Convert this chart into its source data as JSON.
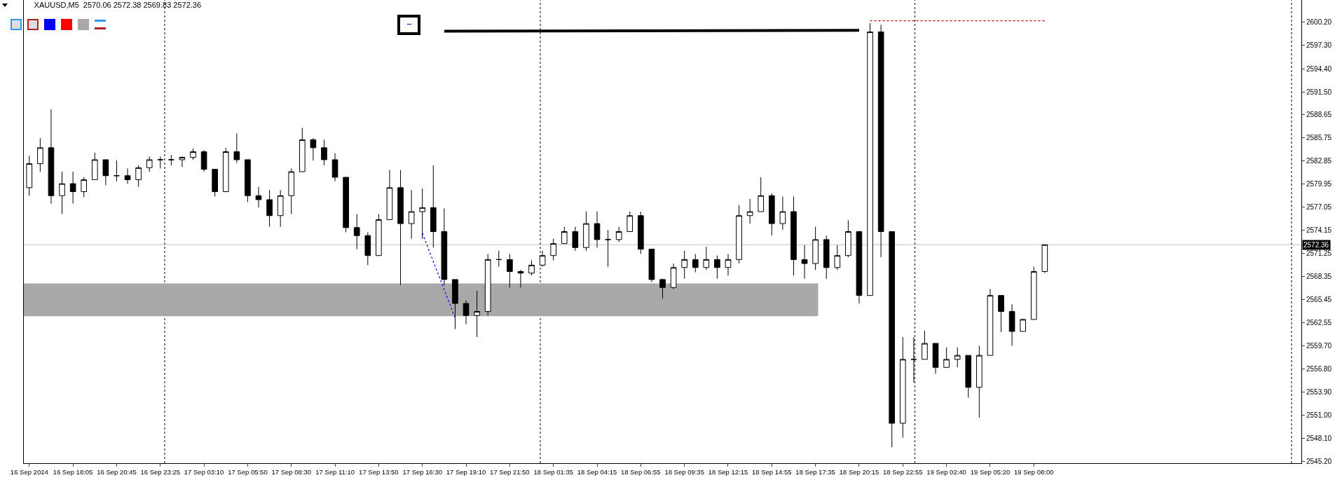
{
  "chart_data": {
    "type": "candlestick",
    "title": "XAUUSD,M5  2570.06 2572.38 2569.83 2572.36",
    "color": "#000000",
    "categories": [
      "16 Sep 2024",
      null,
      null,
      null,
      "16 Sep 18:05",
      null,
      null,
      null,
      "16 Sep 20:45",
      null,
      null,
      null,
      "16 Sep 23:25",
      null,
      null,
      null,
      "17 Sep 03:10",
      null,
      null,
      null,
      "17 Sep 05:50",
      null,
      null,
      null,
      "17 Sep 08:30",
      null,
      null,
      null,
      "17 Sep 11:10",
      null,
      null,
      null,
      "17 Sep 13:50",
      null,
      null,
      null,
      "17 Sep 16:30",
      null,
      null,
      null,
      "17 Sep 19:10",
      null,
      null,
      null,
      "17 Sep 21:50",
      null,
      null,
      null,
      "18 Sep 01:35",
      null,
      null,
      null,
      "18 Sep 04:15",
      null,
      null,
      null,
      "18 Sep 06:55",
      null,
      null,
      null,
      "18 Sep 09:35",
      null,
      null,
      null,
      "18 Sep 12:15",
      null,
      null,
      null,
      "18 Sep 14:55",
      null,
      null,
      null,
      "18 Sep 17:35",
      null,
      null,
      null,
      "18 Sep 20:15",
      null,
      null,
      null,
      "18 Sep 22:55",
      null,
      null,
      null,
      "19 Sep 02:40",
      null,
      null,
      null,
      "19 Sep 05:20",
      null,
      null,
      null,
      "19 Sep 08:00",
      null,
      null,
      null,
      null,
      null,
      null,
      null,
      null,
      null,
      null,
      null,
      null,
      null,
      null,
      null,
      null,
      null,
      null,
      null,
      null,
      null,
      null,
      null,
      null
    ],
    "ohlc": [
      [
        2579.5,
        2583.5,
        2578.5,
        2582.5
      ],
      [
        2582.5,
        2585.7,
        2581.5,
        2584.5
      ],
      [
        2584.5,
        2589.3,
        2577.5,
        2578.5
      ],
      [
        2578.5,
        2581.5,
        2576.2,
        2580
      ],
      [
        2580,
        2581.5,
        2577.5,
        2579
      ],
      [
        2579,
        2580.8,
        2578.3,
        2580.5
      ],
      [
        2580.5,
        2583.9,
        2580.5,
        2583
      ],
      [
        2583,
        2583,
        2579.8,
        2581
      ],
      [
        2581,
        2582.9,
        2580.3,
        2581
      ],
      [
        2581,
        2581.9,
        2580,
        2580.5
      ],
      [
        2580.5,
        2582.3,
        2579.6,
        2582
      ],
      [
        2582,
        2583.4,
        2581.5,
        2583
      ],
      [
        2583,
        2583.4,
        2581.9,
        2583
      ],
      [
        2583,
        2583.6,
        2582.3,
        2583
      ],
      [
        2583,
        2583.4,
        2582.1,
        2583.3
      ],
      [
        2583.3,
        2584.4,
        2583,
        2584
      ],
      [
        2584,
        2584.2,
        2581.5,
        2581.8
      ],
      [
        2581.8,
        2581.8,
        2578.4,
        2579
      ],
      [
        2579,
        2584.5,
        2579,
        2584
      ],
      [
        2584,
        2586.3,
        2582.6,
        2583
      ],
      [
        2583,
        2583,
        2577.7,
        2578.5
      ],
      [
        2578.5,
        2579.6,
        2577,
        2578
      ],
      [
        2578,
        2579.2,
        2574.6,
        2576
      ],
      [
        2576,
        2579.2,
        2574.6,
        2578.5
      ],
      [
        2578.5,
        2581.9,
        2576.2,
        2581.5
      ],
      [
        2581.5,
        2587,
        2581.5,
        2585.5
      ],
      [
        2585.5,
        2585.7,
        2582.9,
        2584.5
      ],
      [
        2584.5,
        2585.5,
        2582.3,
        2583
      ],
      [
        2583,
        2583.8,
        2580.3,
        2580.8
      ],
      [
        2580.8,
        2580.8,
        2573.9,
        2574.5
      ],
      [
        2574.5,
        2576.2,
        2571.8,
        2573.5
      ],
      [
        2573.5,
        2573.9,
        2569.8,
        2571
      ],
      [
        2571,
        2576.2,
        2571,
        2575.5
      ],
      [
        2575.5,
        2581.7,
        2575.5,
        2579.5
      ],
      [
        2579.5,
        2581.7,
        2567.3,
        2575
      ],
      [
        2575,
        2579.2,
        2573.1,
        2576.5
      ],
      [
        2576.5,
        2579.4,
        2573.1,
        2577
      ],
      [
        2577,
        2582.3,
        2572,
        2574
      ],
      [
        2574,
        2576.9,
        2567.3,
        2568
      ],
      [
        2568,
        2568,
        2561.8,
        2565
      ],
      [
        2565,
        2565.4,
        2562.4,
        2563.5
      ],
      [
        2563.5,
        2566.6,
        2560.8,
        2564
      ],
      [
        2564,
        2571.2,
        2563.5,
        2570.5
      ],
      [
        2570.5,
        2571.6,
        2569.6,
        2570.5
      ],
      [
        2570.5,
        2571.2,
        2567,
        2569
      ],
      [
        2569,
        2569.2,
        2567,
        2568.8
      ],
      [
        2568.8,
        2570.4,
        2568.5,
        2569.8
      ],
      [
        2569.8,
        2571.6,
        2569.6,
        2571
      ],
      [
        2571,
        2573.1,
        2570.4,
        2572.5
      ],
      [
        2572.5,
        2574.6,
        2572.5,
        2574
      ],
      [
        2574,
        2574.6,
        2571.6,
        2572
      ],
      [
        2572,
        2576.5,
        2571.6,
        2575
      ],
      [
        2575,
        2576.5,
        2572,
        2573
      ],
      [
        2573,
        2574.2,
        2569.6,
        2573
      ],
      [
        2573,
        2574.6,
        2572.7,
        2574
      ],
      [
        2574,
        2576.5,
        2574,
        2576
      ],
      [
        2576,
        2576.5,
        2571.2,
        2571.8
      ],
      [
        2571.8,
        2571.8,
        2567.7,
        2568
      ],
      [
        2568,
        2568.1,
        2565.6,
        2567
      ],
      [
        2567,
        2570,
        2566.8,
        2569.5
      ],
      [
        2569.5,
        2571.6,
        2568.1,
        2570.5
      ],
      [
        2570.5,
        2571.2,
        2568.9,
        2569.5
      ],
      [
        2569.5,
        2572.1,
        2569.2,
        2570.5
      ],
      [
        2570.5,
        2571,
        2568.1,
        2569.5
      ],
      [
        2569.5,
        2571.2,
        2568.5,
        2570.5
      ],
      [
        2570.5,
        2577.3,
        2570,
        2576
      ],
      [
        2576,
        2578.1,
        2575,
        2576.5
      ],
      [
        2576.5,
        2580.8,
        2576.5,
        2578.5
      ],
      [
        2578.5,
        2578.8,
        2573.5,
        2575
      ],
      [
        2575,
        2578.4,
        2574.2,
        2576.5
      ],
      [
        2576.5,
        2578.4,
        2568.5,
        2570.5
      ],
      [
        2570.5,
        2572.3,
        2568.1,
        2570
      ],
      [
        2570,
        2574.6,
        2569.2,
        2573
      ],
      [
        2573,
        2573.5,
        2568.1,
        2569.5
      ],
      [
        2569.5,
        2572.3,
        2569.2,
        2571
      ],
      [
        2571,
        2575.4,
        2570.8,
        2574
      ],
      [
        2574,
        2574,
        2565,
        2566
      ],
      [
        2566,
        2600.1,
        2566,
        2599
      ],
      [
        2599,
        2599.9,
        2570.8,
        2574
      ],
      [
        2574,
        2574,
        2547,
        2550
      ],
      [
        2550,
        2560.8,
        2548.2,
        2558
      ],
      [
        2558,
        2560.8,
        2555.1,
        2558
      ],
      [
        2558,
        2561.6,
        2558,
        2560
      ],
      [
        2560,
        2560,
        2556.2,
        2557
      ],
      [
        2557,
        2559.5,
        2557,
        2558
      ],
      [
        2558,
        2559.5,
        2557,
        2558.5
      ],
      [
        2558.5,
        2558.5,
        2553.2,
        2554.5
      ],
      [
        2554.5,
        2559.7,
        2550.7,
        2558.5
      ],
      [
        2558.5,
        2566.8,
        2558.5,
        2566
      ],
      [
        2566,
        2566,
        2561.4,
        2564
      ],
      [
        2564,
        2564.9,
        2559.7,
        2561.5
      ],
      [
        2561.5,
        2563.1,
        2561.5,
        2563
      ],
      [
        2563,
        2569.6,
        2563,
        2569
      ],
      [
        2569,
        2572.38,
        2568.8,
        2572.36
      ],
      null,
      null,
      null,
      null,
      null,
      null,
      null,
      null,
      null,
      null,
      null,
      null,
      null,
      null,
      null,
      null,
      null,
      null,
      null,
      null,
      null,
      null,
      null
    ],
    "bands": [
      {
        "axis": "y",
        "from": 2563.4,
        "to": 2567.5,
        "color": "#a9a9a9"
      }
    ],
    "series": [
      {
        "type": "line",
        "color": "#000000",
        "line_style": "solid",
        "values": [
          null,
          null,
          null,
          null,
          null,
          null,
          null,
          null,
          null,
          null,
          null,
          null,
          null,
          null,
          null,
          null,
          null,
          null,
          null,
          null,
          null,
          null,
          null,
          null,
          null,
          null,
          null,
          null,
          null,
          null,
          null,
          null,
          null,
          null,
          null,
          null,
          null,
          null,
          2599.1,
          null,
          null,
          null,
          null,
          null,
          null,
          null,
          null,
          null,
          null,
          null,
          null,
          null,
          null,
          null,
          null,
          null,
          null,
          null,
          null,
          null,
          null,
          null,
          null,
          null,
          null,
          null,
          null,
          null,
          null,
          null,
          null,
          null,
          null,
          null,
          null,
          null,
          2599.2,
          null,
          null,
          null,
          null,
          null,
          null,
          null,
          null,
          null,
          null,
          null,
          null,
          null,
          null,
          null,
          null,
          null,
          null,
          null,
          null,
          null,
          null,
          null,
          null,
          null,
          null,
          null,
          null,
          null,
          null,
          null,
          null,
          null,
          null,
          null,
          null,
          null,
          null,
          null,
          null
        ]
      },
      {
        "type": "line",
        "color": "#0000ff",
        "line_style": "dotted",
        "values": [
          null,
          null,
          null,
          null,
          null,
          null,
          null,
          null,
          null,
          null,
          null,
          null,
          null,
          null,
          null,
          null,
          null,
          null,
          null,
          null,
          null,
          null,
          null,
          null,
          null,
          null,
          null,
          null,
          null,
          null,
          null,
          null,
          null,
          null,
          null,
          null,
          2573.8,
          null,
          null,
          2563.2,
          null,
          null,
          null,
          null,
          null,
          null,
          null,
          null,
          null,
          null,
          null,
          null,
          null,
          null,
          null,
          null,
          null,
          null,
          null,
          null,
          null,
          null,
          null,
          null,
          null,
          null,
          null,
          null,
          null,
          null,
          null,
          null,
          null,
          null,
          null,
          null,
          null,
          null,
          null,
          null,
          null,
          null,
          null,
          null,
          null,
          null,
          null,
          null,
          null,
          null,
          null,
          null,
          null,
          null,
          null,
          null,
          null,
          null,
          null,
          null,
          null,
          null,
          null,
          null,
          null,
          null,
          null,
          null,
          null,
          null,
          null,
          null,
          null,
          null,
          null,
          null,
          null
        ]
      },
      {
        "type": "line",
        "color": "#c00000",
        "line_style": "dotted",
        "values": [
          null,
          null,
          null,
          null,
          null,
          null,
          null,
          null,
          null,
          null,
          null,
          null,
          null,
          null,
          null,
          null,
          null,
          null,
          null,
          null,
          null,
          null,
          null,
          null,
          null,
          null,
          null,
          null,
          null,
          null,
          null,
          null,
          null,
          null,
          null,
          null,
          null,
          null,
          null,
          null,
          null,
          null,
          null,
          null,
          null,
          null,
          null,
          null,
          null,
          null,
          null,
          null,
          null,
          null,
          null,
          null,
          null,
          null,
          null,
          null,
          null,
          null,
          null,
          null,
          null,
          null,
          null,
          null,
          null,
          null,
          null,
          null,
          null,
          null,
          null,
          null,
          null,
          2600.4,
          null,
          null,
          null,
          null,
          null,
          null,
          null,
          null,
          null,
          null,
          null,
          null,
          null,
          null,
          null,
          2600.4,
          null,
          null,
          null,
          null,
          null,
          null,
          null,
          null,
          null,
          null,
          null,
          null,
          null,
          null,
          null,
          null,
          null,
          null,
          null,
          null,
          null,
          null,
          null
        ]
      }
    ],
    "ylim": [
      2545.0,
      2603.0
    ],
    "yticks": [
      {
        "value": 2600.2,
        "label": "2600.20"
      },
      {
        "value": 2597.3,
        "label": "2597.30"
      },
      {
        "value": 2594.4,
        "label": "2594.40"
      },
      {
        "value": 2591.5,
        "label": "2591.50"
      },
      {
        "value": 2588.65,
        "label": "2588.65"
      },
      {
        "value": 2585.75,
        "label": "2585.75"
      },
      {
        "value": 2582.85,
        "label": "2582.85"
      },
      {
        "value": 2579.95,
        "label": "2579.95"
      },
      {
        "value": 2577.05,
        "label": "2577.05"
      },
      {
        "value": 2574.15,
        "label": "2574.15"
      },
      {
        "value": 2571.25,
        "label": "2571.25"
      },
      {
        "value": 2568.35,
        "label": "2568.35"
      },
      {
        "value": 2565.45,
        "label": "2565.45"
      },
      {
        "value": 2562.55,
        "label": "2562.55"
      },
      {
        "value": 2559.7,
        "label": "2559.70"
      },
      {
        "value": 2556.8,
        "label": "2556.80"
      },
      {
        "value": 2553.9,
        "label": "2553.90"
      },
      {
        "value": 2551.0,
        "label": "2551.00"
      },
      {
        "value": 2548.1,
        "label": "2548.10"
      },
      {
        "value": 2545.2,
        "label": "2545.20"
      }
    ],
    "ref_lines": [
      {
        "axis": "y",
        "value": 2572.36,
        "label": "2572.36",
        "color": "#c0c0c0",
        "line_style": "solid"
      }
    ]
  }
}
